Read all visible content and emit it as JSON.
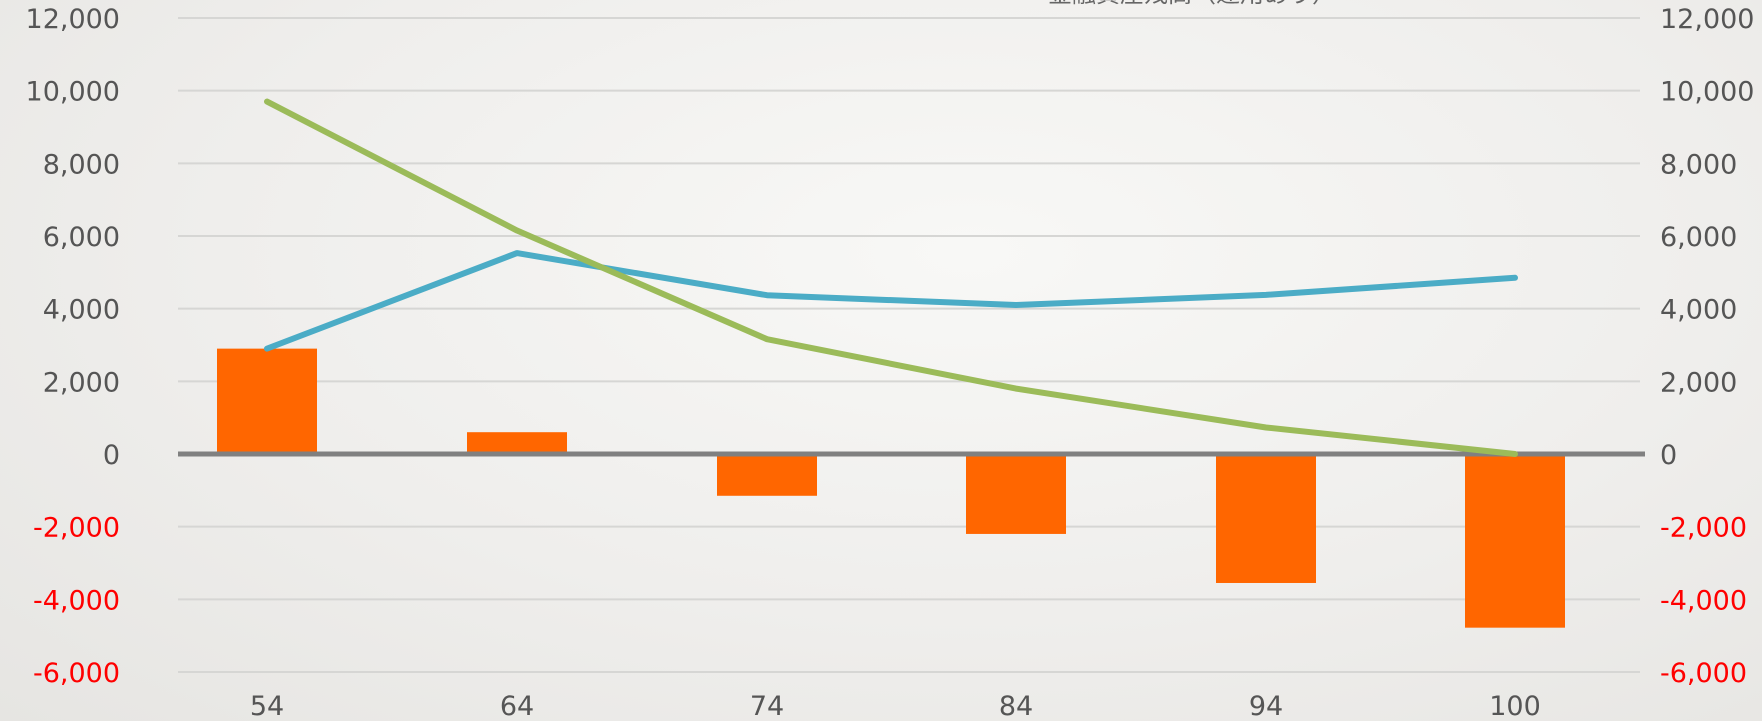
{
  "chart_data": {
    "type": "bar",
    "title": "金融資産残高（運用あり）",
    "categories": [
      "54",
      "64",
      "74",
      "84",
      "94",
      "100"
    ],
    "series": [
      {
        "type": "bar",
        "color": "#ff6600",
        "values": [
          2900,
          600,
          -1150,
          -2200,
          -3550,
          -4780
        ]
      },
      {
        "type": "line",
        "color": "#4bacc6",
        "values": [
          2900,
          5530,
          4370,
          4100,
          4380,
          4850
        ]
      },
      {
        "type": "line",
        "color": "#9bbb59",
        "values": [
          9700,
          6150,
          3160,
          1800,
          730,
          0
        ]
      }
    ],
    "ylim": [
      -6000,
      12000
    ],
    "y_ticks": [
      {
        "value": 12000,
        "label": "12,000"
      },
      {
        "value": 10000,
        "label": "10,000"
      },
      {
        "value": 8000,
        "label": "8,000"
      },
      {
        "value": 6000,
        "label": "6,000"
      },
      {
        "value": 4000,
        "label": "4,000"
      },
      {
        "value": 2000,
        "label": "2,000"
      },
      {
        "value": 0,
        "label": "0"
      },
      {
        "value": -2000,
        "label": "-2,000"
      },
      {
        "value": -4000,
        "label": "-4,000"
      },
      {
        "value": -6000,
        "label": "-6,000"
      }
    ],
    "grid": true,
    "negative_tick_color": "#ff0000",
    "positive_tick_color": "#555555",
    "gridline_color": "#d6d6d4",
    "zero_line_color": "#808080"
  }
}
